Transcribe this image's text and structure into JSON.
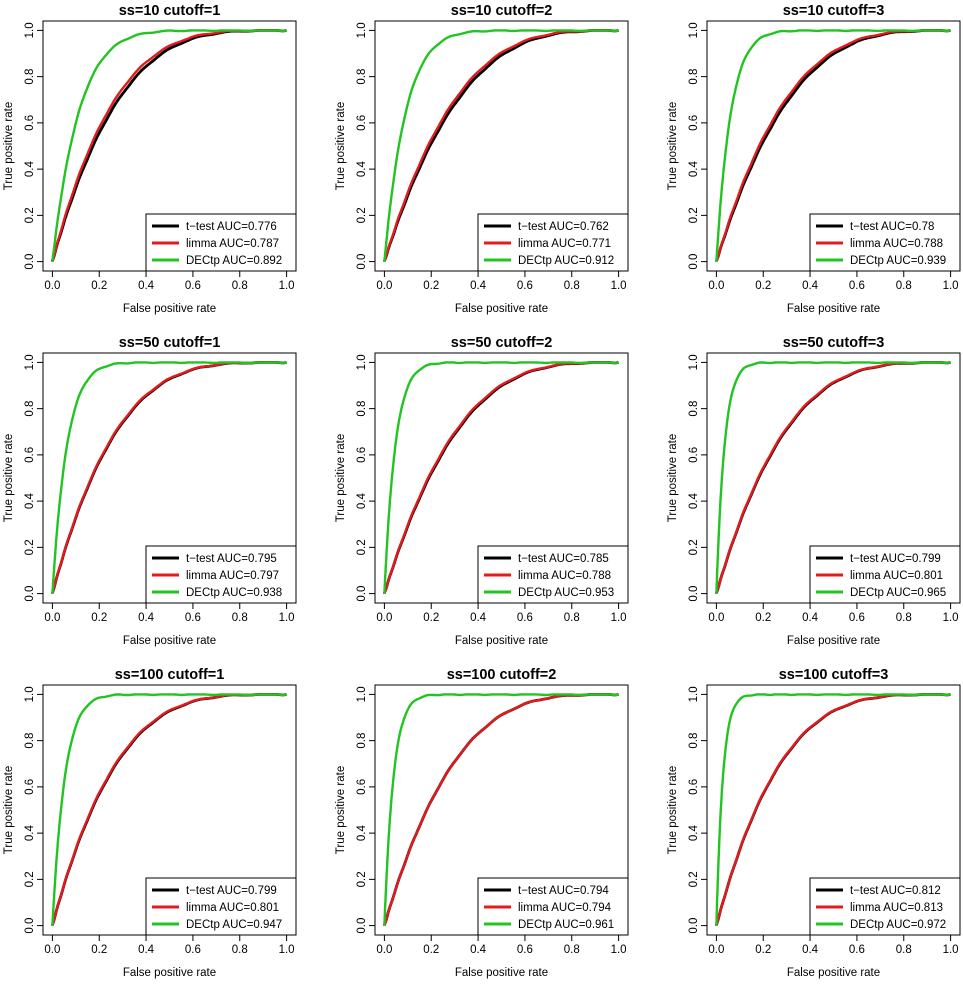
{
  "x_tick_labels": [
    "0.0",
    "0.2",
    "0.4",
    "0.6",
    "0.8",
    "1.0"
  ],
  "y_tick_labels": [
    "0.0",
    "0.2",
    "0.4",
    "0.6",
    "0.8",
    "1.0"
  ],
  "series_colors": {
    "t-test": "#000000",
    "limma": "#e41a1c",
    "DECtp": "#22c422"
  },
  "chart_data": [
    {
      "type": "line",
      "title": "ss=10  cutoff=1",
      "xlabel": "False positive rate",
      "ylabel": "True positive rate",
      "xlim": [
        0,
        1
      ],
      "ylim": [
        0,
        1
      ],
      "series": [
        {
          "name": "t-test",
          "legend": "t−test  AUC=0.776",
          "auc": 0.776,
          "shape": 1.2
        },
        {
          "name": "limma",
          "legend": "limma  AUC=0.787",
          "auc": 0.787,
          "shape": 1.2
        },
        {
          "name": "DECtp",
          "legend": "DECtp  AUC=0.892",
          "auc": 0.892,
          "shape": 1.2
        }
      ]
    },
    {
      "type": "line",
      "title": "ss=10  cutoff=2",
      "xlabel": "False positive rate",
      "ylabel": "True positive rate",
      "xlim": [
        0,
        1
      ],
      "ylim": [
        0,
        1
      ],
      "series": [
        {
          "name": "t-test",
          "legend": "t−test  AUC=0.762",
          "auc": 0.762,
          "shape": 1.0
        },
        {
          "name": "limma",
          "legend": "limma  AUC=0.771",
          "auc": 0.771,
          "shape": 1.0
        },
        {
          "name": "DECtp",
          "legend": "DECtp  AUC=0.912",
          "auc": 0.912,
          "shape": 1.2
        }
      ]
    },
    {
      "type": "line",
      "title": "ss=10  cutoff=3",
      "xlabel": "False positive rate",
      "ylabel": "True positive rate",
      "xlim": [
        0,
        1
      ],
      "ylim": [
        0,
        1
      ],
      "series": [
        {
          "name": "t-test",
          "legend": "t−test  AUC=0.78",
          "auc": 0.78,
          "shape": 0.7
        },
        {
          "name": "limma",
          "legend": "limma  AUC=0.788",
          "auc": 0.788,
          "shape": 0.7
        },
        {
          "name": "DECtp",
          "legend": "DECtp  AUC=0.939",
          "auc": 0.939,
          "shape": 1.2
        }
      ]
    },
    {
      "type": "line",
      "title": "ss=50  cutoff=1",
      "xlabel": "False positive rate",
      "ylabel": "True positive rate",
      "xlim": [
        0,
        1
      ],
      "ylim": [
        0,
        1
      ],
      "series": [
        {
          "name": "t-test",
          "legend": "t−test  AUC=0.795",
          "auc": 0.795,
          "shape": 0.9
        },
        {
          "name": "limma",
          "legend": "limma  AUC=0.797",
          "auc": 0.797,
          "shape": 0.9
        },
        {
          "name": "DECtp",
          "legend": "DECtp  AUC=0.938",
          "auc": 0.938,
          "shape": 1.2
        }
      ]
    },
    {
      "type": "line",
      "title": "ss=50  cutoff=2",
      "xlabel": "False positive rate",
      "ylabel": "True positive rate",
      "xlim": [
        0,
        1
      ],
      "ylim": [
        0,
        1
      ],
      "series": [
        {
          "name": "t-test",
          "legend": "t−test  AUC=0.785",
          "auc": 0.785,
          "shape": 0.6
        },
        {
          "name": "limma",
          "legend": "limma  AUC=0.788",
          "auc": 0.788,
          "shape": 0.6
        },
        {
          "name": "DECtp",
          "legend": "DECtp  AUC=0.953",
          "auc": 0.953,
          "shape": 1.2
        }
      ]
    },
    {
      "type": "line",
      "title": "ss=50  cutoff=3",
      "xlabel": "False positive rate",
      "ylabel": "True positive rate",
      "xlim": [
        0,
        1
      ],
      "ylim": [
        0,
        1
      ],
      "series": [
        {
          "name": "t-test",
          "legend": "t−test  AUC=0.799",
          "auc": 0.799,
          "shape": 0.5
        },
        {
          "name": "limma",
          "legend": "limma  AUC=0.801",
          "auc": 0.801,
          "shape": 0.5
        },
        {
          "name": "DECtp",
          "legend": "DECtp  AUC=0.965",
          "auc": 0.965,
          "shape": 1.2
        }
      ]
    },
    {
      "type": "line",
      "title": "ss=100  cutoff=1",
      "xlabel": "False positive rate",
      "ylabel": "True positive rate",
      "xlim": [
        0,
        1
      ],
      "ylim": [
        0,
        1
      ],
      "series": [
        {
          "name": "t-test",
          "legend": "t−test  AUC=0.799",
          "auc": 0.799,
          "shape": 0.8
        },
        {
          "name": "limma",
          "legend": "limma  AUC=0.801",
          "auc": 0.801,
          "shape": 0.8
        },
        {
          "name": "DECtp",
          "legend": "DECtp  AUC=0.947",
          "auc": 0.947,
          "shape": 1.2
        }
      ]
    },
    {
      "type": "line",
      "title": "ss=100  cutoff=2",
      "xlabel": "False positive rate",
      "ylabel": "True positive rate",
      "xlim": [
        0,
        1
      ],
      "ylim": [
        0,
        1
      ],
      "series": [
        {
          "name": "t-test",
          "legend": "t−test  AUC=0.794",
          "auc": 0.794,
          "shape": 0.6
        },
        {
          "name": "limma",
          "legend": "limma  AUC=0.794",
          "auc": 0.794,
          "shape": 0.6
        },
        {
          "name": "DECtp",
          "legend": "DECtp  AUC=0.961",
          "auc": 0.961,
          "shape": 1.2
        }
      ]
    },
    {
      "type": "line",
      "title": "ss=100  cutoff=3",
      "xlabel": "False positive rate",
      "ylabel": "True positive rate",
      "xlim": [
        0,
        1
      ],
      "ylim": [
        0,
        1
      ],
      "series": [
        {
          "name": "t-test",
          "legend": "t−test  AUC=0.812",
          "auc": 0.812,
          "shape": 0.5
        },
        {
          "name": "limma",
          "legend": "limma  AUC=0.813",
          "auc": 0.813,
          "shape": 0.5
        },
        {
          "name": "DECtp",
          "legend": "DECtp  AUC=0.972",
          "auc": 0.972,
          "shape": 1.2
        }
      ]
    }
  ]
}
